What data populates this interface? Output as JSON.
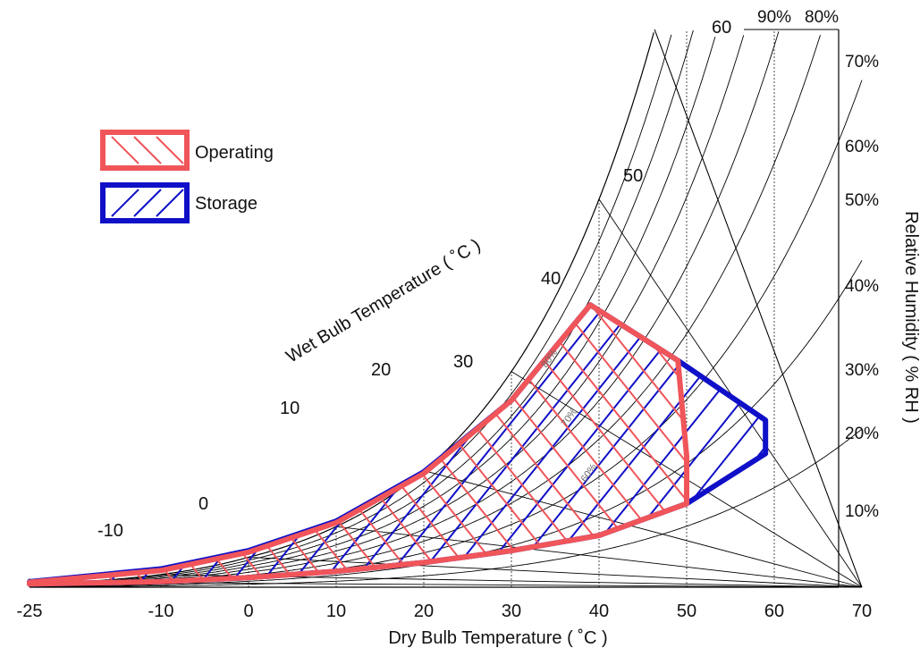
{
  "chart_data": {
    "type": "psychrometric",
    "xlabel": "Dry Bulb Temperature ( ˚C )",
    "ylabel": "Relative Humidity ( % RH )",
    "wetbulb_axis_label": "Wet Bulb Temperature ( ˚C )",
    "x_ticks": [
      "-25",
      "-10",
      "0",
      "10",
      "20",
      "30",
      "40",
      "50",
      "60",
      "70"
    ],
    "x_range": [
      -25,
      70
    ],
    "rh_labels": [
      "90%",
      "80%",
      "70%",
      "60%",
      "50%",
      "40%",
      "30%",
      "20%",
      "10%"
    ],
    "rh_curves": [
      10,
      20,
      30,
      40,
      50,
      60,
      70,
      80,
      90,
      100
    ],
    "wetbulb_labels": [
      "-10",
      "0",
      "10",
      "20",
      "30",
      "40",
      "50",
      "60"
    ],
    "inner_rh_labels": [
      "80%",
      "70%",
      "60%"
    ],
    "legend": [
      {
        "label": "Operating",
        "color": "#f0555a",
        "hatch": "backslash"
      },
      {
        "label": "Storage",
        "color": "#1010c8",
        "hatch": "slash"
      }
    ],
    "legend_position": "upper-left",
    "series": [
      {
        "name": "Operating",
        "color": "#f0555a",
        "boundary_db_w": [
          [
            -25,
            0.4
          ],
          [
            -25,
            0.62
          ],
          [
            -10,
            2.1
          ],
          [
            0,
            4.4
          ],
          [
            10,
            8.1
          ],
          [
            20,
            14.3
          ],
          [
            30,
            23.5
          ],
          [
            39,
            35.5
          ],
          [
            49,
            28.5
          ],
          [
            50,
            16.5
          ],
          [
            50,
            10.5
          ],
          [
            40,
            6.5
          ],
          [
            30,
            4.6
          ],
          [
            20,
            3.1
          ],
          [
            10,
            2.0
          ],
          [
            0,
            1.2
          ],
          [
            -10,
            0.7
          ],
          [
            -25,
            0.4
          ]
        ]
      },
      {
        "name": "Storage",
        "color": "#1010c8",
        "boundary_db_w": [
          [
            -25,
            0.4
          ],
          [
            -25,
            0.68
          ],
          [
            -10,
            2.3
          ],
          [
            0,
            4.6
          ],
          [
            10,
            8.3
          ],
          [
            20,
            14.5
          ],
          [
            30,
            23.5
          ],
          [
            39,
            35.5
          ],
          [
            49,
            28.5
          ],
          [
            59,
            21.0
          ],
          [
            59,
            16.8
          ],
          [
            50,
            10.5
          ],
          [
            40,
            6.5
          ],
          [
            30,
            4.6
          ],
          [
            20,
            3.1
          ],
          [
            10,
            2.0
          ],
          [
            0,
            1.2
          ],
          [
            -10,
            0.7
          ],
          [
            -25,
            0.4
          ]
        ]
      }
    ]
  }
}
